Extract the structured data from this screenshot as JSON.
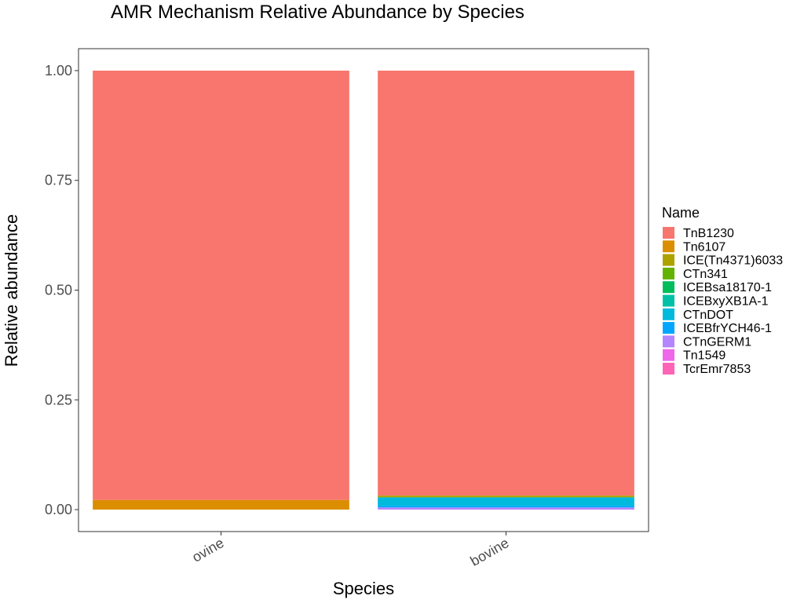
{
  "chart_data": {
    "type": "bar",
    "stacked": true,
    "title": "AMR Mechanism Relative Abundance by Species",
    "xlabel": "Species",
    "ylabel": "Relative abundance",
    "ylim": [
      -0.05,
      1.05
    ],
    "yticks": [
      "0.00",
      "0.25",
      "0.50",
      "0.75",
      "1.00"
    ],
    "ytick_values": [
      0,
      0.25,
      0.5,
      0.75,
      1.0
    ],
    "categories": [
      "ovine",
      "bovine"
    ],
    "legend": {
      "title": "Name",
      "position": "right"
    },
    "series": [
      {
        "name": "TnB1230",
        "color": "#F8766D",
        "values": [
          0.978,
          0.968
        ]
      },
      {
        "name": "Tn6107",
        "color": "#DB8E00",
        "values": [
          0.022,
          0.0
        ]
      },
      {
        "name": "ICE(Tn4371)6033",
        "color": "#AEA200",
        "values": [
          0.0,
          0.004
        ]
      },
      {
        "name": "CTn341",
        "color": "#64B200",
        "values": [
          0.0,
          0.0
        ]
      },
      {
        "name": "ICEBsa18170-1",
        "color": "#00BD5C",
        "values": [
          0.0,
          0.0
        ]
      },
      {
        "name": "ICEBxyXB1A-1",
        "color": "#00C1A7",
        "values": [
          0.0,
          0.0
        ]
      },
      {
        "name": "CTnDOT",
        "color": "#00BADE",
        "values": [
          0.0,
          0.02
        ]
      },
      {
        "name": "ICEBfrYCH46-1",
        "color": "#00A6FF",
        "values": [
          0.0,
          0.003
        ]
      },
      {
        "name": "CTnGERM1",
        "color": "#B385FF",
        "values": [
          0.0,
          0.005
        ]
      },
      {
        "name": "Tn1549",
        "color": "#EF67EB",
        "values": [
          0.0,
          0.0
        ]
      },
      {
        "name": "TcrEmr7853",
        "color": "#FF63B6",
        "values": [
          0.0,
          0.0
        ]
      }
    ],
    "grid": false
  }
}
